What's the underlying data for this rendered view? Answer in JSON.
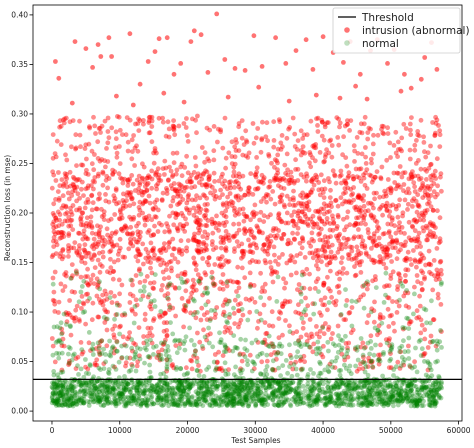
{
  "chart_data": {
    "type": "scatter",
    "title": "",
    "xlabel": "Test Samples",
    "ylabel": "Reconstruction loss (in mse)",
    "xlim": [
      -2800,
      60500
    ],
    "ylim": [
      -0.01,
      0.41
    ],
    "xticks": [
      0,
      10000,
      20000,
      30000,
      40000,
      50000,
      60000
    ],
    "xtick_labels": [
      "0",
      "10000",
      "20000",
      "30000",
      "40000",
      "50000",
      "60000"
    ],
    "yticks": [
      0.0,
      0.05,
      0.1,
      0.15,
      0.2,
      0.25,
      0.3,
      0.35,
      0.4
    ],
    "ytick_labels": [
      "0.00",
      "0.05",
      "0.10",
      "0.15",
      "0.20",
      "0.25",
      "0.30",
      "0.35",
      "0.40"
    ],
    "threshold": 0.032,
    "legend_position": "top-right",
    "legend": [
      "Threshold",
      "intrusion (abnormal)",
      "normal"
    ],
    "colors": {
      "threshold": "#000000",
      "abnormal": "#ff0000",
      "normal": "#008000"
    },
    "series": [
      {
        "name": "intrusion (abnormal)",
        "x_range": [
          0,
          57500
        ],
        "dense_band": [
          0.15,
          0.24
        ],
        "y_range": [
          0.04,
          0.3
        ],
        "outliers": [
          [
            500,
            0.353
          ],
          [
            1000,
            0.336
          ],
          [
            3400,
            0.373
          ],
          [
            5000,
            0.366
          ],
          [
            6800,
            0.37
          ],
          [
            7200,
            0.358
          ],
          [
            8400,
            0.377
          ],
          [
            8800,
            0.358
          ],
          [
            11500,
            0.381
          ],
          [
            13000,
            0.33
          ],
          [
            14200,
            0.353
          ],
          [
            15200,
            0.363
          ],
          [
            15800,
            0.376
          ],
          [
            17000,
            0.377
          ],
          [
            18000,
            0.34
          ],
          [
            19000,
            0.351
          ],
          [
            20500,
            0.373
          ],
          [
            21000,
            0.384
          ],
          [
            22000,
            0.38
          ],
          [
            23000,
            0.342
          ],
          [
            24300,
            0.401
          ],
          [
            25500,
            0.355
          ],
          [
            27000,
            0.346
          ],
          [
            29800,
            0.379
          ],
          [
            31000,
            0.348
          ],
          [
            33000,
            0.377
          ],
          [
            34500,
            0.351
          ],
          [
            36000,
            0.364
          ],
          [
            37500,
            0.375
          ],
          [
            38500,
            0.345
          ],
          [
            40000,
            0.378
          ],
          [
            41500,
            0.362
          ],
          [
            43000,
            0.352
          ],
          [
            44000,
            0.373
          ],
          [
            45500,
            0.34
          ],
          [
            47000,
            0.364
          ],
          [
            48000,
            0.375
          ],
          [
            49500,
            0.351
          ],
          [
            50500,
            0.365
          ],
          [
            52000,
            0.34
          ],
          [
            53000,
            0.326
          ],
          [
            54500,
            0.335
          ],
          [
            55000,
            0.357
          ],
          [
            56000,
            0.372
          ],
          [
            56800,
            0.345
          ],
          [
            9500,
            0.318
          ],
          [
            16500,
            0.321
          ],
          [
            26000,
            0.317
          ],
          [
            30500,
            0.327
          ],
          [
            39000,
            0.319
          ],
          [
            46500,
            0.315
          ],
          [
            51500,
            0.323
          ],
          [
            3000,
            0.311
          ],
          [
            12000,
            0.309
          ],
          [
            35000,
            0.313
          ],
          [
            42500,
            0.316
          ],
          [
            28500,
            0.344
          ],
          [
            6000,
            0.347
          ],
          [
            19500,
            0.312
          ],
          [
            44800,
            0.328
          ]
        ]
      },
      {
        "name": "normal",
        "x_range": [
          0,
          57500
        ],
        "dense_band": [
          0.005,
          0.032
        ],
        "y_range": [
          0.003,
          0.14
        ]
      }
    ]
  }
}
